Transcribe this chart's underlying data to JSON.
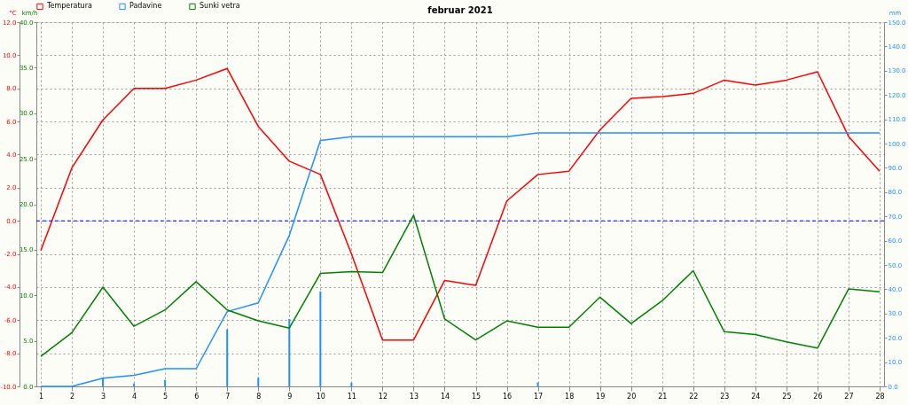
{
  "chart_data": {
    "type": "line",
    "title": "februar 2021",
    "ylabel": "°C",
    "y3label": "km/h",
    "y2label": "mm",
    "x": [
      1,
      2,
      3,
      4,
      5,
      6,
      7,
      8,
      9,
      10,
      11,
      12,
      13,
      14,
      15,
      16,
      17,
      18,
      19,
      20,
      21,
      22,
      23,
      24,
      25,
      26,
      27,
      28
    ],
    "xlim": [
      1,
      28
    ],
    "xticks": [
      1,
      2,
      3,
      4,
      5,
      6,
      7,
      8,
      9,
      10,
      11,
      12,
      13,
      14,
      15,
      16,
      17,
      18,
      19,
      20,
      21,
      22,
      23,
      24,
      25,
      26,
      27,
      28
    ],
    "ylim": [
      -10,
      12
    ],
    "yticks": [
      {
        "value": -10,
        "label": "-10.0"
      },
      {
        "value": -8,
        "label": "-8.0"
      },
      {
        "value": -6,
        "label": "-6.0"
      },
      {
        "value": -4,
        "label": "-4.0"
      },
      {
        "value": -2,
        "label": "-2.0"
      },
      {
        "value": 0,
        "label": "0.0"
      },
      {
        "value": 2,
        "label": "2.0"
      },
      {
        "value": 4,
        "label": "4.0"
      },
      {
        "value": 6,
        "label": "6.0"
      },
      {
        "value": 8,
        "label": "8.0"
      },
      {
        "value": 10,
        "label": "10.0"
      },
      {
        "value": 12,
        "label": "12.0"
      }
    ],
    "y3lim": [
      0,
      40
    ],
    "y3ticks": [
      {
        "value": 0,
        "label": "0.0"
      },
      {
        "value": 5,
        "label": "5.0"
      },
      {
        "value": 10,
        "label": "10.0"
      },
      {
        "value": 15,
        "label": "15.0"
      },
      {
        "value": 20,
        "label": "20.0"
      },
      {
        "value": 25,
        "label": "25.0"
      },
      {
        "value": 30,
        "label": "30.0"
      },
      {
        "value": 35,
        "label": "35.0"
      },
      {
        "value": 40,
        "label": "40.0"
      }
    ],
    "y2lim": [
      0,
      150
    ],
    "y2ticks": [
      {
        "value": 0,
        "label": "0.0"
      },
      {
        "value": 10,
        "label": "10.0"
      },
      {
        "value": 20,
        "label": "20.0"
      },
      {
        "value": 30,
        "label": "30.0"
      },
      {
        "value": 40,
        "label": "40.0"
      },
      {
        "value": 50,
        "label": "50.0"
      },
      {
        "value": 60,
        "label": "60.0"
      },
      {
        "value": 70,
        "label": "70.0"
      },
      {
        "value": 80,
        "label": "80.0"
      },
      {
        "value": 90,
        "label": "90.0"
      },
      {
        "value": 100,
        "label": "100.0"
      },
      {
        "value": 110,
        "label": "110.0"
      },
      {
        "value": 120,
        "label": "120.0"
      },
      {
        "value": 130,
        "label": "130.0"
      },
      {
        "value": 140,
        "label": "140.0"
      },
      {
        "value": 150,
        "label": "150.0"
      }
    ],
    "series": [
      {
        "name": "Temperatura",
        "color": "#ff0000",
        "values": [
          -1.8,
          3.2,
          6.1,
          8.0,
          8.0,
          8.5,
          9.2,
          5.7,
          3.6,
          2.8,
          -2.0,
          -7.2,
          -7.2,
          -3.6,
          -3.9,
          1.2,
          2.8,
          3.0,
          5.5,
          7.4,
          7.5,
          7.7,
          8.5,
          8.2,
          8.5,
          9.0,
          5.1,
          3.0
        ]
      },
      {
        "name": "Padavine",
        "color": "#1e90ff",
        "axis": "y2",
        "values": [
          0,
          0,
          3.4,
          4.6,
          7.3,
          7.3,
          30.8,
          34.4,
          62.2,
          101.3,
          102.8,
          102.8,
          102.8,
          102.8,
          102.8,
          102.8,
          104.4,
          104.4,
          104.4,
          104.4,
          104.4,
          104.4,
          104.4,
          104.4,
          104.4,
          104.4,
          104.4,
          104.4
        ]
      },
      {
        "type": "bar",
        "color": "#1e90ff",
        "axis": "y2",
        "values": [
          null,
          null,
          3.4,
          1.2,
          2.7,
          null,
          23.5,
          3.6,
          27.8,
          39.1,
          1.5,
          null,
          null,
          null,
          null,
          null,
          1.6,
          null,
          null,
          null,
          null,
          null,
          null,
          null,
          null,
          null,
          null,
          null
        ]
      },
      {
        "name": "Sunki vetra",
        "color": "#008000",
        "axis": "y3",
        "values": [
          3.3,
          5.9,
          10.9,
          6.6,
          8.4,
          11.5,
          8.4,
          7.2,
          6.4,
          12.4,
          12.6,
          12.5,
          18.8,
          7.4,
          5.1,
          7.2,
          6.5,
          6.5,
          9.8,
          6.9,
          9.4,
          12.7,
          6.0,
          5.7,
          4.9,
          4.2,
          10.7,
          10.4
        ]
      }
    ],
    "ref_lines": [
      {
        "axis": "y",
        "value": 0,
        "color": "#0000ff",
        "line_style": "dashed"
      }
    ],
    "grid": true,
    "legend": "top left"
  }
}
